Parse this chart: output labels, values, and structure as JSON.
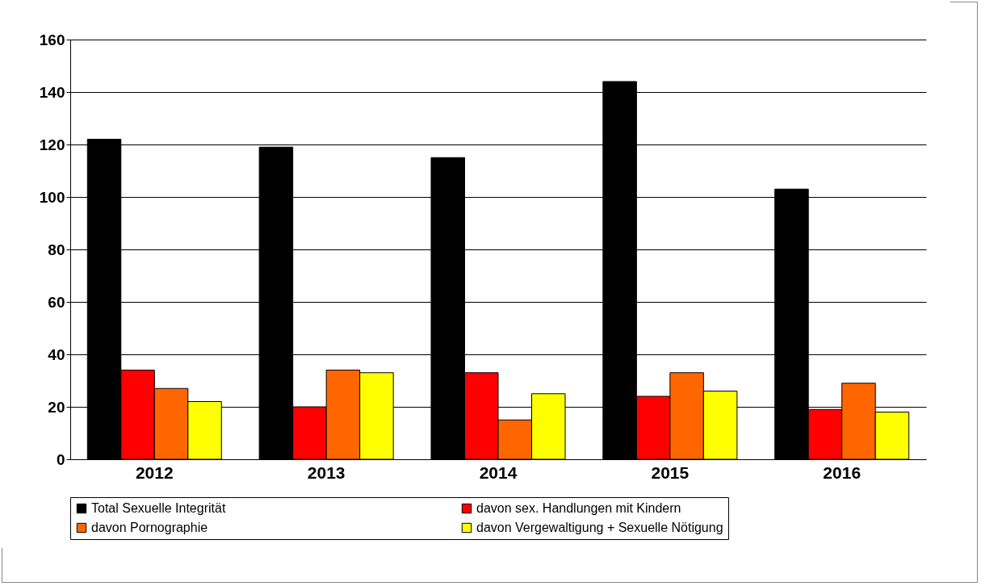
{
  "chart_data": {
    "type": "bar",
    "categories": [
      "2012",
      "2013",
      "2014",
      "2015",
      "2016"
    ],
    "series": [
      {
        "name": "Total Sexuelle Integrität",
        "color": "#000000",
        "values": [
          122,
          119,
          115,
          144,
          103
        ]
      },
      {
        "name": "davon sex. Handlungen mit Kindern",
        "color": "#ff0000",
        "values": [
          34,
          20,
          33,
          24,
          19
        ]
      },
      {
        "name": "davon Pornographie",
        "color": "#ff6600",
        "values": [
          27,
          34,
          15,
          33,
          29
        ]
      },
      {
        "name": "davon Vergewaltigung + Sexuelle Nötigung",
        "color": "#ffff00",
        "values": [
          22,
          33,
          25,
          26,
          18
        ]
      }
    ],
    "ylim": [
      0,
      160
    ],
    "yticks": [
      0,
      20,
      40,
      60,
      80,
      100,
      120,
      140,
      160
    ],
    "grid": "y",
    "legend": "bottom"
  }
}
